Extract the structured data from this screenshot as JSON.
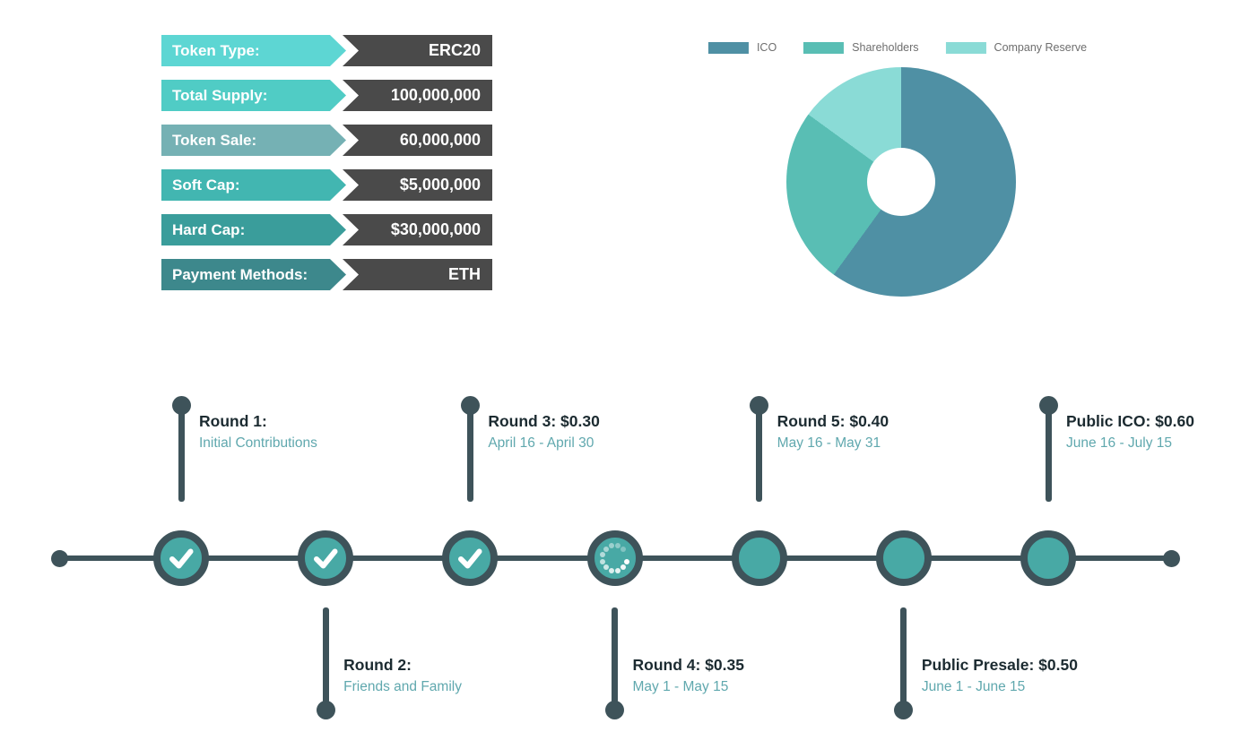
{
  "token_table": {
    "value_bg_color": "#4a4a4a",
    "rows": [
      {
        "label": "Token Type:",
        "value": "ERC20",
        "label_color": "#5dd6d3"
      },
      {
        "label": "Total Supply:",
        "value": "100,000,000",
        "label_color": "#50ccc5"
      },
      {
        "label": "Token Sale:",
        "value": "60,000,000",
        "label_color": "#75b1b4"
      },
      {
        "label": "Soft Cap:",
        "value": "$5,000,000",
        "label_color": "#42b6b1"
      },
      {
        "label": "Hard Cap:",
        "value": "$30,000,000",
        "label_color": "#3a9d9b"
      },
      {
        "label": "Payment Methods:",
        "value": "ETH",
        "label_color": "#3d888c"
      }
    ]
  },
  "chart_data": {
    "type": "pie",
    "donut": true,
    "hole_ratio": 0.3,
    "categories": [
      "ICO",
      "Shareholders",
      "Company Reserve"
    ],
    "values": [
      60,
      25,
      15
    ],
    "colors": [
      "#4f90a4",
      "#59beb4",
      "#8adbd6"
    ],
    "legend_position": "top",
    "start_angle_deg": 0,
    "direction": "clockwise"
  },
  "timeline": {
    "colors": {
      "line": "#3e535a",
      "node_fill": "#48a9a5",
      "title": "#1c2b31",
      "subtitle": "#60a8ae"
    },
    "milestones": [
      {
        "title": "Round 1:",
        "subtitle": "Initial Contributions",
        "status": "complete",
        "label_position": "top"
      },
      {
        "title": "Round 2:",
        "subtitle": "Friends and Family",
        "status": "complete",
        "label_position": "bottom"
      },
      {
        "title": "Round 3: $0.30",
        "subtitle": "April 16 - April 30",
        "status": "complete",
        "label_position": "top"
      },
      {
        "title": "Round 4: $0.35",
        "subtitle": "May 1 - May 15",
        "status": "in-progress",
        "label_position": "bottom"
      },
      {
        "title": "Round 5: $0.40",
        "subtitle": "May 16 - May 31",
        "status": "upcoming",
        "label_position": "top"
      },
      {
        "title": "Public Presale: $0.50",
        "subtitle": "June 1 - June 15",
        "status": "upcoming",
        "label_position": "bottom"
      },
      {
        "title": "Public ICO: $0.60",
        "subtitle": "June 16 - July 15",
        "status": "upcoming",
        "label_position": "top"
      }
    ]
  }
}
